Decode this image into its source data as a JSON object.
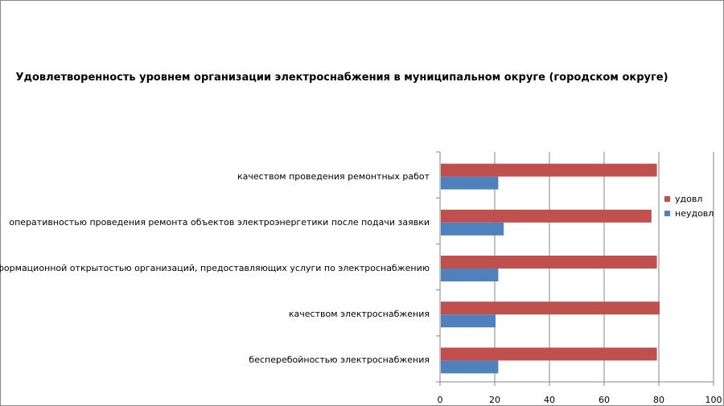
{
  "chart_data": {
    "type": "bar",
    "orientation": "horizontal",
    "title": "Удовлетворенность уровнем организации электроснабжения в муниципальном округе (городском округе)",
    "categories": [
      "качеством проведения ремонтных работ",
      "оперативностью проведения ремонта объектов электроэнергетики после подачи заявки",
      "информационной открытостью организаций, предоставляющих услуги по электроснабжению",
      "качеством электроснабжения",
      "бесперебойностью электроснабжения"
    ],
    "series": [
      {
        "name": "удовл",
        "color": "#C0504D",
        "values": [
          79,
          77,
          79,
          80,
          79
        ]
      },
      {
        "name": "неудовл",
        "color": "#4F81BD",
        "values": [
          21,
          23,
          21,
          20,
          21
        ]
      }
    ],
    "xlim": [
      0,
      100
    ],
    "xticks": [
      "0",
      "20",
      "40",
      "60",
      "80",
      "100"
    ],
    "grid": "vertical",
    "legend": "right"
  }
}
